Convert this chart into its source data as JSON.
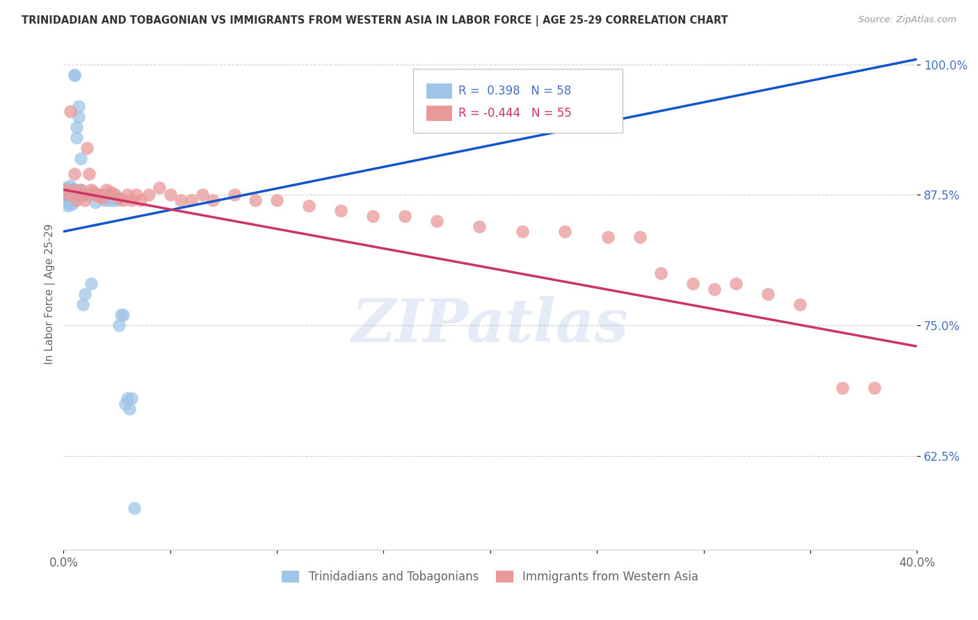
{
  "title": "TRINIDADIAN AND TOBAGONIAN VS IMMIGRANTS FROM WESTERN ASIA IN LABOR FORCE | AGE 25-29 CORRELATION CHART",
  "source": "Source: ZipAtlas.com",
  "ylabel": "In Labor Force | Age 25-29",
  "xlim": [
    0.0,
    0.4
  ],
  "ylim": [
    0.535,
    1.025
  ],
  "xticks": [
    0.0,
    0.05,
    0.1,
    0.15,
    0.2,
    0.25,
    0.3,
    0.35,
    0.4
  ],
  "xtick_labels": [
    "0.0%",
    "",
    "",
    "",
    "",
    "",
    "",
    "",
    "40.0%"
  ],
  "ytick_labels": [
    "62.5%",
    "75.0%",
    "87.5%",
    "100.0%"
  ],
  "yticks": [
    0.625,
    0.75,
    0.875,
    1.0
  ],
  "r_blue": 0.398,
  "n_blue": 58,
  "r_pink": -0.444,
  "n_pink": 55,
  "blue_color": "#9fc5e8",
  "pink_color": "#ea9999",
  "blue_line_color": "#1155cc",
  "pink_line_color": "#cc3366",
  "legend_label_blue": "Trinidadians and Tobagonians",
  "legend_label_pink": "Immigrants from Western Asia",
  "blue_x": [
    0.001,
    0.001,
    0.001,
    0.001,
    0.001,
    0.002,
    0.002,
    0.002,
    0.002,
    0.002,
    0.002,
    0.003,
    0.003,
    0.003,
    0.003,
    0.003,
    0.004,
    0.004,
    0.004,
    0.004,
    0.005,
    0.005,
    0.005,
    0.005,
    0.006,
    0.006,
    0.006,
    0.007,
    0.007,
    0.008,
    0.008,
    0.009,
    0.009,
    0.01,
    0.01,
    0.011,
    0.012,
    0.013,
    0.014,
    0.015,
    0.016,
    0.017,
    0.018,
    0.019,
    0.02,
    0.021,
    0.022,
    0.023,
    0.024,
    0.025,
    0.026,
    0.027,
    0.028,
    0.029,
    0.03,
    0.031,
    0.032,
    0.033
  ],
  "blue_y": [
    0.875,
    0.882,
    0.87,
    0.868,
    0.876,
    0.88,
    0.873,
    0.865,
    0.877,
    0.869,
    0.871,
    0.878,
    0.874,
    0.866,
    0.884,
    0.872,
    0.879,
    0.867,
    0.875,
    0.881,
    0.99,
    0.99,
    0.878,
    0.872,
    0.94,
    0.93,
    0.88,
    0.96,
    0.95,
    0.91,
    0.88,
    0.875,
    0.77,
    0.875,
    0.78,
    0.875,
    0.875,
    0.79,
    0.875,
    0.868,
    0.875,
    0.875,
    0.875,
    0.87,
    0.875,
    0.87,
    0.875,
    0.87,
    0.875,
    0.87,
    0.75,
    0.76,
    0.76,
    0.675,
    0.68,
    0.67,
    0.68,
    0.575
  ],
  "pink_x": [
    0.001,
    0.002,
    0.003,
    0.004,
    0.005,
    0.006,
    0.007,
    0.008,
    0.009,
    0.01,
    0.011,
    0.012,
    0.013,
    0.014,
    0.015,
    0.016,
    0.017,
    0.018,
    0.02,
    0.022,
    0.024,
    0.026,
    0.028,
    0.03,
    0.032,
    0.034,
    0.036,
    0.04,
    0.045,
    0.05,
    0.055,
    0.06,
    0.065,
    0.07,
    0.08,
    0.09,
    0.1,
    0.115,
    0.13,
    0.145,
    0.16,
    0.175,
    0.195,
    0.215,
    0.235,
    0.255,
    0.27,
    0.28,
    0.295,
    0.305,
    0.315,
    0.33,
    0.345,
    0.365,
    0.38
  ],
  "pink_y": [
    0.88,
    0.875,
    0.955,
    0.88,
    0.895,
    0.87,
    0.875,
    0.88,
    0.875,
    0.87,
    0.92,
    0.895,
    0.88,
    0.878,
    0.876,
    0.874,
    0.875,
    0.872,
    0.88,
    0.878,
    0.875,
    0.872,
    0.87,
    0.875,
    0.87,
    0.875,
    0.87,
    0.875,
    0.882,
    0.875,
    0.87,
    0.87,
    0.875,
    0.87,
    0.875,
    0.87,
    0.87,
    0.865,
    0.86,
    0.855,
    0.855,
    0.85,
    0.845,
    0.84,
    0.84,
    0.835,
    0.835,
    0.8,
    0.79,
    0.785,
    0.79,
    0.78,
    0.77,
    0.69,
    0.69
  ],
  "blue_trendline_x0": 0.0,
  "blue_trendline_y0": 0.84,
  "blue_trendline_x1": 0.4,
  "blue_trendline_y1": 1.005,
  "pink_trendline_x0": 0.0,
  "pink_trendline_y0": 0.88,
  "pink_trendline_x1": 0.4,
  "pink_trendline_y1": 0.73,
  "watermark_text": "ZIPatlas",
  "background_color": "#ffffff",
  "grid_color": "#cccccc"
}
